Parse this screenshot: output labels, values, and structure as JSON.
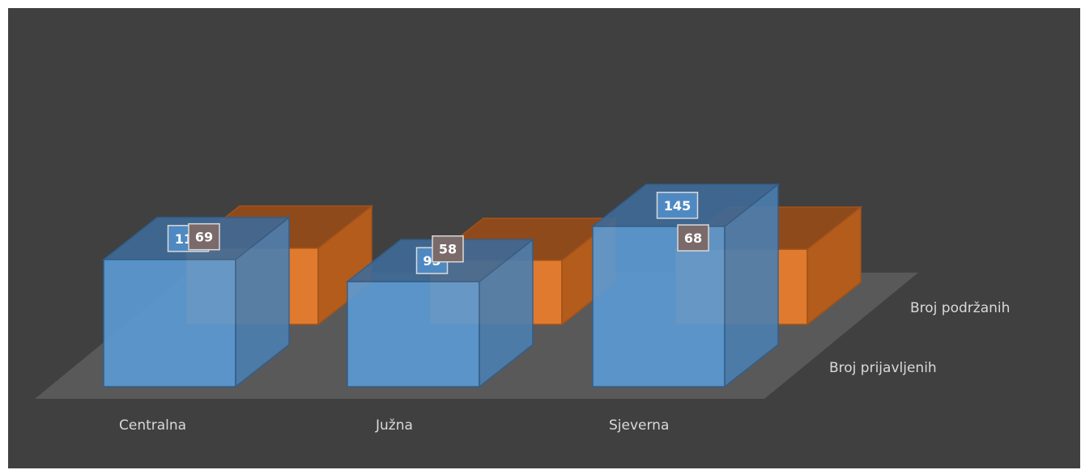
{
  "chart_data": {
    "type": "bar",
    "style": "3d-column",
    "categories": [
      "Centralna",
      "Južna",
      "Sjeverna"
    ],
    "series": [
      {
        "name": "Broj prijavljenih",
        "values": [
          115,
          95,
          145
        ],
        "color": "#5b9bd5"
      },
      {
        "name": "Broj podržanih",
        "values": [
          69,
          58,
          68
        ],
        "color": "#ed7d31"
      }
    ],
    "data_labels": true,
    "background_color": "#404040",
    "floor_color": "#595959"
  }
}
